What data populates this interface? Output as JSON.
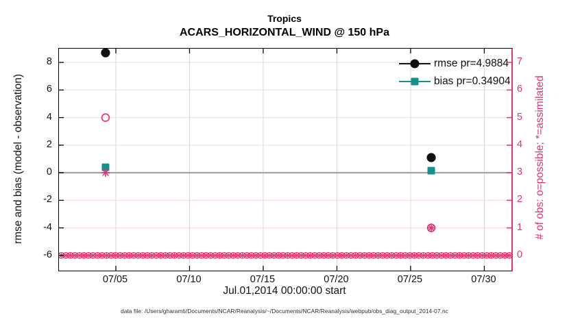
{
  "figure": {
    "title": "Tropics",
    "subtitle": "ACARS_HORIZONTAL_WIND @ 150 hPa",
    "xlabel": "Jul.01,2014 00:00:00 start",
    "ylabel_left": "rmse and bias (model - observation)",
    "ylabel_right": "# of obs: o=possible; *=assimilated",
    "footer": "data file: /Users/gharamti/Documents/NCAR/Reanalysis/~/Documents/NCAR/Reanalysis/webpub/obs_diag_output_2014-07.nc"
  },
  "colors": {
    "accent_pink": "#e5336e",
    "grid_pink": "#f8dde8",
    "grid_gray": "#d8d8d8",
    "zero_line": "#a9a1a4",
    "teal": "#16908a",
    "marker_black": "#111111"
  },
  "chart_data": {
    "type": "scatter",
    "title": "Tropics",
    "subtitle": "ACARS_HORIZONTAL_WIND @ 150 hPa",
    "xlabel": "Jul.01,2014 00:00:00 start",
    "ylabel_left": "rmse and bias (model - observation)",
    "ylabel_right": "# of obs: o=possible; *=assimilated",
    "grid": true,
    "legend_position": "top-right-inside",
    "x_domain_days_july_2014": [
      1.14,
      31.84
    ],
    "x_ticks": [
      {
        "day": 5,
        "label": "07/05"
      },
      {
        "day": 10,
        "label": "07/10"
      },
      {
        "day": 15,
        "label": "07/15"
      },
      {
        "day": 20,
        "label": "07/20"
      },
      {
        "day": 25,
        "label": "07/25"
      },
      {
        "day": 30,
        "label": "07/30"
      }
    ],
    "ylim_left": [
      -7.1,
      9.0
    ],
    "y_ticks_left": [
      8,
      6,
      4,
      2,
      0,
      -2,
      -4,
      -6
    ],
    "y_ticks_right": [
      7,
      6,
      5,
      4,
      3,
      2,
      1,
      0
    ],
    "right_axis_mapping": "left_value = 2 * right_value - 6",
    "zero_reference_line_left_value": 0,
    "legend": [
      {
        "label": "rmse pr=4.9884",
        "marker": "filled-circle",
        "color": "#111111"
      },
      {
        "label": "bias pr=0.34904",
        "marker": "filled-square",
        "color": "#16908a"
      }
    ],
    "series": [
      {
        "name": "rmse",
        "axis": "left",
        "marker": "filled-circle",
        "color": "#111111",
        "points": [
          {
            "day": 4.3,
            "value": 8.7
          },
          {
            "day": 26.4,
            "value": 1.1
          }
        ]
      },
      {
        "name": "bias",
        "axis": "left",
        "marker": "filled-square",
        "color": "#16908a",
        "points": [
          {
            "day": 4.3,
            "value": 0.4
          },
          {
            "day": 26.4,
            "value": 0.15
          }
        ]
      },
      {
        "name": "possible_obs",
        "axis": "right",
        "marker": "open-circle",
        "color": "#e5336e",
        "points": [
          {
            "day": 4.3,
            "value": 5
          },
          {
            "day": 26.4,
            "value": 1
          }
        ]
      },
      {
        "name": "assimilated_obs",
        "axis": "right",
        "marker": "asterisk",
        "color": "#e5336e",
        "points": [
          {
            "day": 4.3,
            "value": 3
          },
          {
            "day": 26.4,
            "value": 1
          }
        ]
      }
    ],
    "zero_obs_band": {
      "axis": "right",
      "value": 0,
      "marker": "circle-asterisk",
      "color": "#e5336e",
      "day_start": 1.3,
      "day_end": 31.7,
      "marker_count": 100
    }
  }
}
